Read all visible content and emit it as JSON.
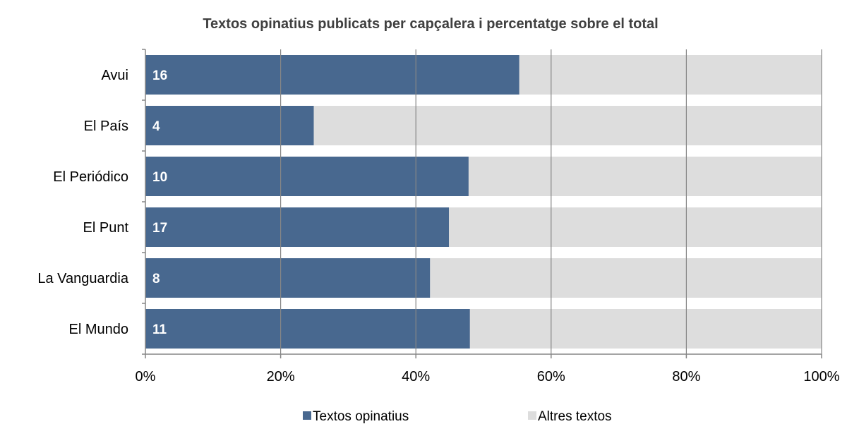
{
  "chart_data": {
    "type": "bar",
    "orientation": "horizontal",
    "stacked": "percent",
    "title": "Textos opinatius publicats per capçalera i percentatge sobre el total",
    "categories": [
      "Avui",
      "El País",
      "El Periódico",
      "El Punt",
      "La Vanguardia",
      "El Mundo"
    ],
    "series": [
      {
        "name": "Textos opinatius",
        "percent": [
          55.3,
          24.9,
          47.8,
          44.9,
          42.1,
          48.0
        ],
        "labels": [
          "16",
          "4",
          "10",
          "17",
          "8",
          "11"
        ],
        "color": "#48688F"
      },
      {
        "name": "Altres textos",
        "percent": [
          44.7,
          75.1,
          52.2,
          55.1,
          57.9,
          52.0
        ],
        "color": "#DDDDDD"
      }
    ],
    "xlim": [
      0,
      100
    ],
    "xticks": [
      "0%",
      "20%",
      "40%",
      "60%",
      "80%",
      "100%"
    ],
    "grid": "vertical",
    "gridColor": "#868686",
    "legend": "bottom"
  }
}
